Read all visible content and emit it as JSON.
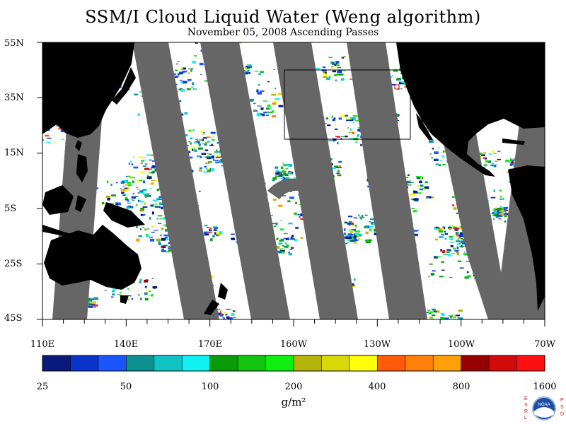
{
  "title": "SSM/I Cloud Liquid Water (Weng algorithm)",
  "subtitle": "November 05, 2008  Ascending Passes",
  "lat_labels": [
    "55N",
    "35N",
    "15N",
    "5S",
    "25S",
    "45S"
  ],
  "lon_labels": [
    "110E",
    "140E",
    "170E",
    "160W",
    "130W",
    "100W",
    "70W"
  ],
  "colorbar": {
    "tick_labels": [
      "25",
      "50",
      "100",
      "200",
      "400",
      "800",
      "1600"
    ],
    "units": "g/m²",
    "colors": [
      "#0a1a7a",
      "#0a35c8",
      "#1a55ff",
      "#0e9090",
      "#10c4c4",
      "#10f2f2",
      "#0a9a0a",
      "#10c410",
      "#10f010",
      "#b4b40a",
      "#d8d80a",
      "#ffff0a",
      "#ff5a0a",
      "#ff800a",
      "#ffa00a",
      "#960000",
      "#d20a0a",
      "#ff1010"
    ]
  },
  "map_colors": {
    "land": "#000000",
    "no_data_swath": "#666666",
    "clear": "#ffffff"
  },
  "logo": {
    "left_letters": "ESRL",
    "right_letters": "PSD",
    "center_text": "NOAA"
  }
}
